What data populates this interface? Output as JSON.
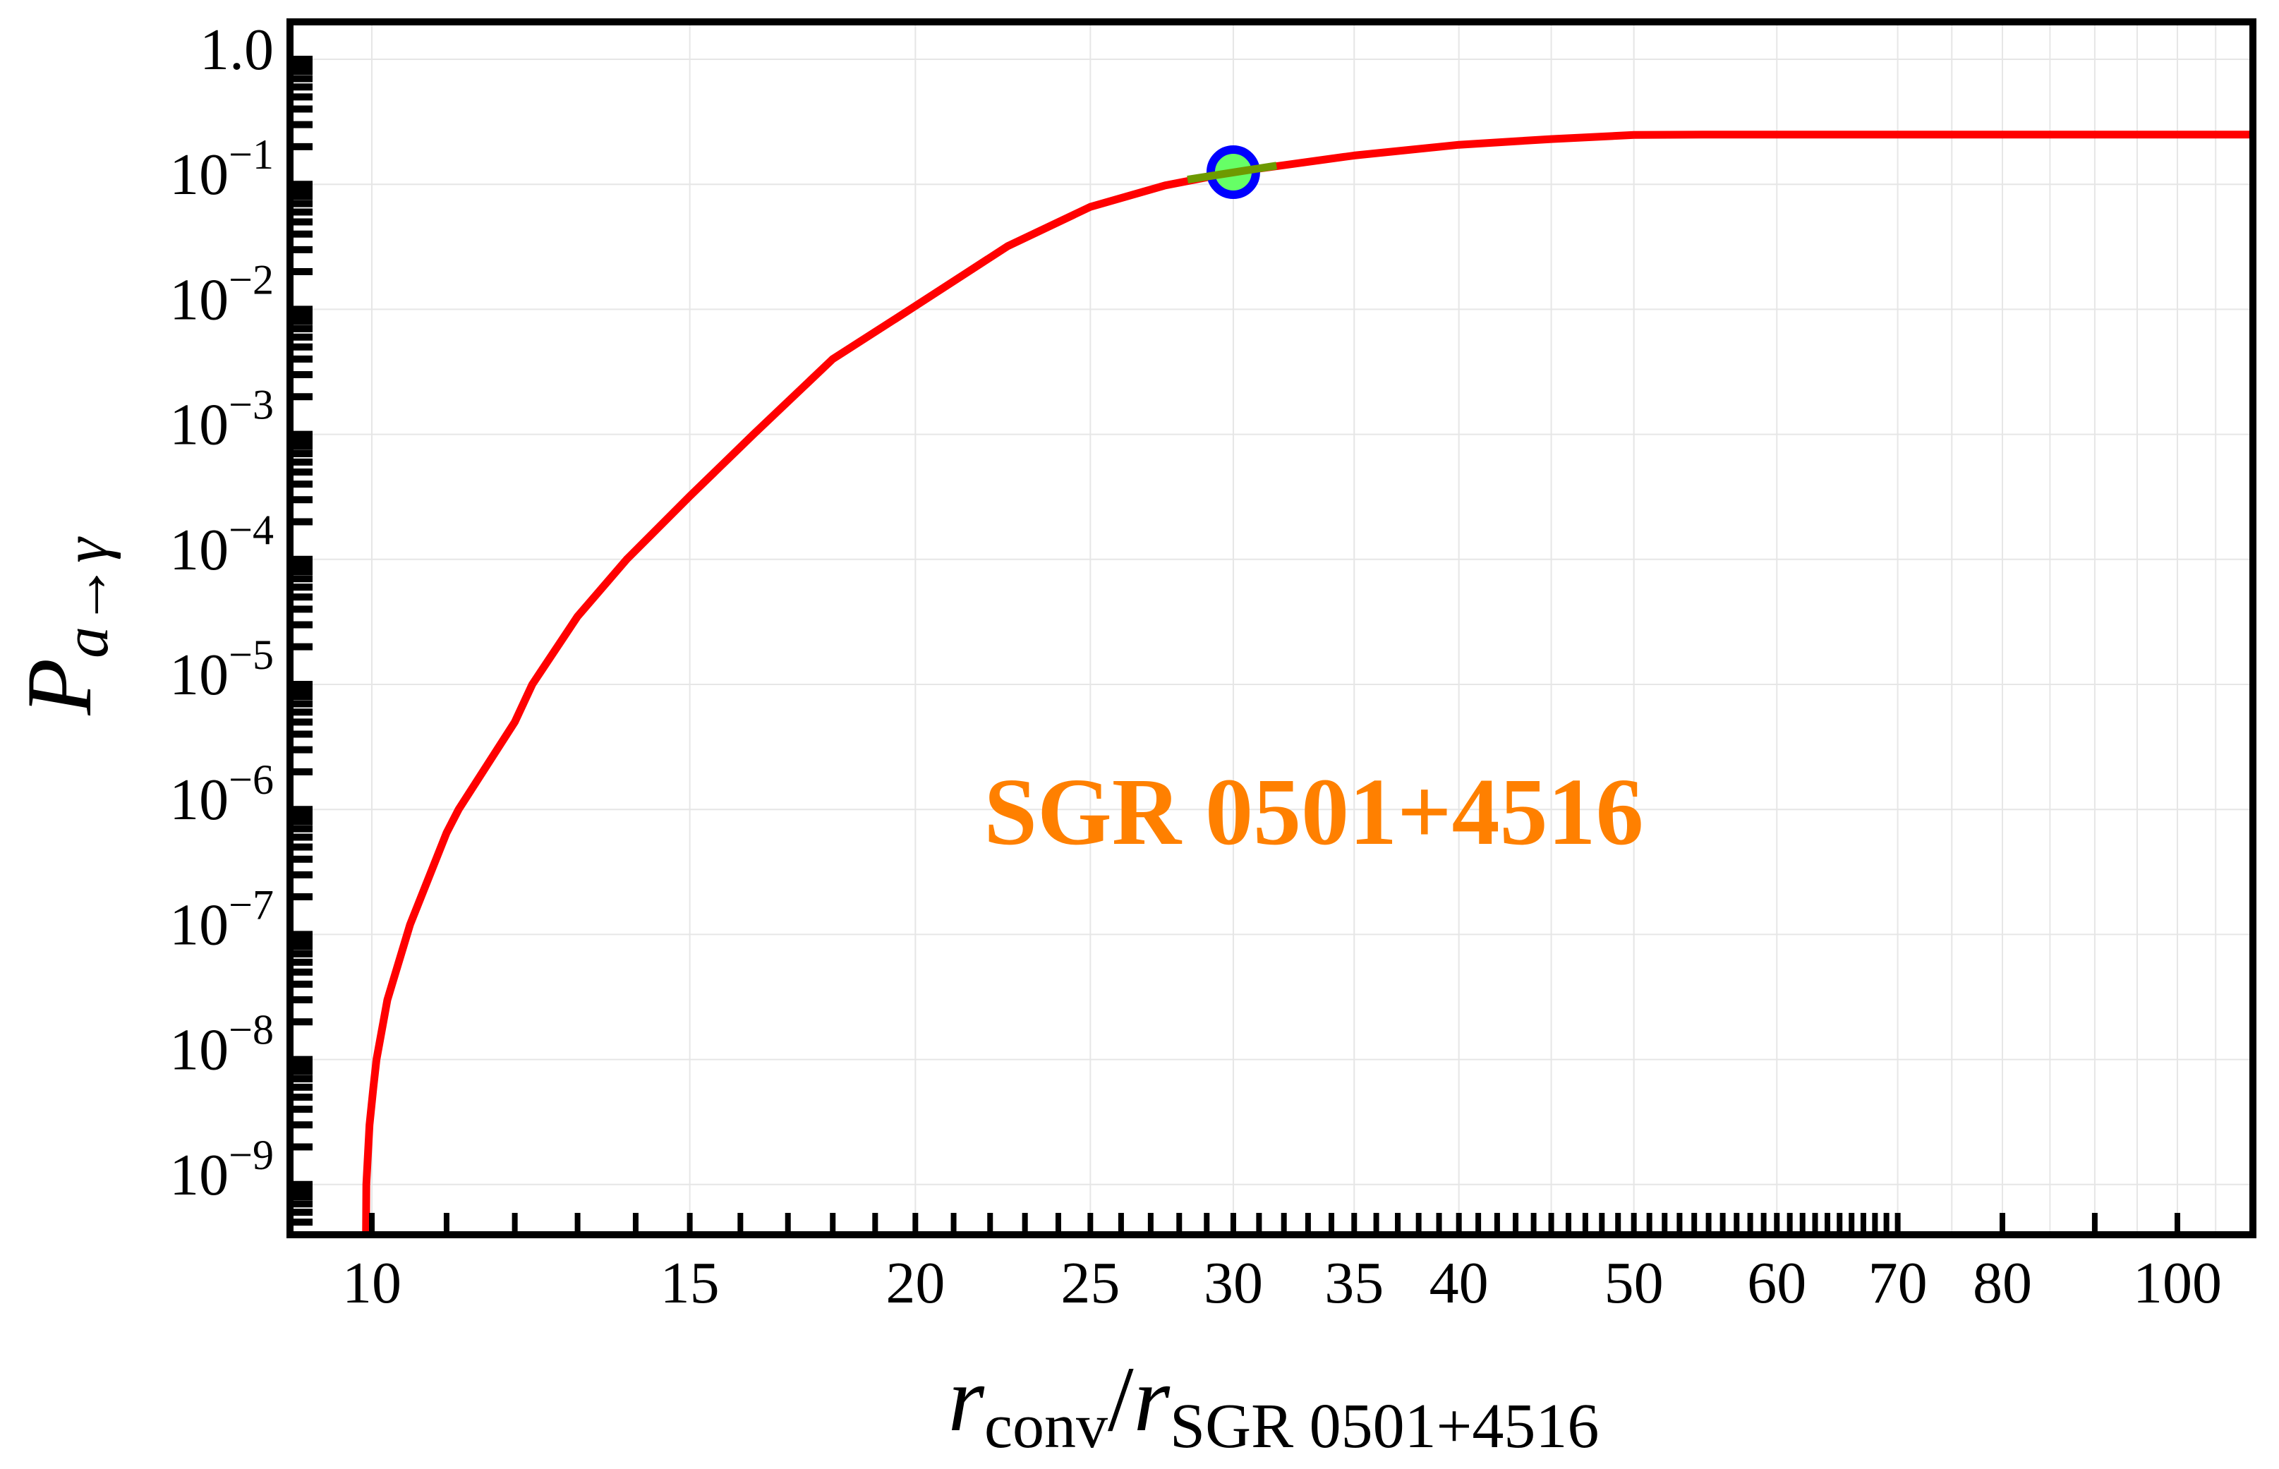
{
  "chart_data": {
    "type": "line",
    "title": "",
    "xlabel": {
      "main": "r",
      "main_sub": "conv",
      "slash": "/",
      "denom": "r",
      "denom_sub": "SGR 0501+4516"
    },
    "ylabel": {
      "main": "P",
      "sub": "a→γ"
    },
    "xscale": "log",
    "yscale": "log",
    "xlim": [
      9.04,
      110
    ],
    "ylim": [
      4e-10,
      2.0
    ],
    "grid": true,
    "legend": null,
    "x_tick_labels": [
      {
        "value": 10,
        "label": "10"
      },
      {
        "value": 15,
        "label": "15"
      },
      {
        "value": 20,
        "label": "20"
      },
      {
        "value": 25,
        "label": "25"
      },
      {
        "value": 30,
        "label": "30"
      },
      {
        "value": 35,
        "label": "35"
      },
      {
        "value": 40,
        "label": "40"
      },
      {
        "value": 50,
        "label": "50"
      },
      {
        "value": 60,
        "label": "60"
      },
      {
        "value": 70,
        "label": "70"
      },
      {
        "value": 80,
        "label": "80"
      },
      {
        "value": 100,
        "label": "100"
      }
    ],
    "y_tick_labels": [
      {
        "value": 1.0,
        "base": "1.0",
        "exp": ""
      },
      {
        "value": 0.1,
        "base": "10",
        "exp": "−1"
      },
      {
        "value": 0.01,
        "base": "10",
        "exp": "−2"
      },
      {
        "value": 0.001,
        "base": "10",
        "exp": "−3"
      },
      {
        "value": 0.0001,
        "base": "10",
        "exp": "−4"
      },
      {
        "value": 1e-05,
        "base": "10",
        "exp": "−5"
      },
      {
        "value": 1e-06,
        "base": "10",
        "exp": "−6"
      },
      {
        "value": 1e-07,
        "base": "10",
        "exp": "−7"
      },
      {
        "value": 1e-08,
        "base": "10",
        "exp": "−8"
      },
      {
        "value": 1e-09,
        "base": "10",
        "exp": "−9"
      }
    ],
    "x_grid_values": [
      10,
      15,
      20,
      25,
      30,
      35,
      40,
      45,
      50,
      60,
      70,
      75,
      80,
      85,
      90,
      95,
      100,
      105
    ],
    "series": [
      {
        "name": "P(a→γ)",
        "color": "#ff0000",
        "x": [
          9.92,
          9.93,
          9.97,
          10.02,
          10.06,
          10.2,
          10.5,
          11.0,
          11.17,
          12.0,
          12.27,
          13.0,
          13.84,
          15.0,
          16.27,
          18.0,
          19.87,
          22.5,
          25.0,
          27.5,
          30.0,
          35.0,
          40.0,
          45.0,
          50.0,
          55.0,
          110.0
        ],
        "y": [
          1e-10,
          1e-09,
          3e-09,
          6e-09,
          1e-08,
          3e-08,
          1.2e-07,
          6.5e-07,
          1e-06,
          5e-06,
          1e-05,
          3.5e-05,
          0.0001,
          0.00032,
          0.001,
          0.004,
          0.01,
          0.032,
          0.066,
          0.098,
          0.125,
          0.17,
          0.207,
          0.23,
          0.248,
          0.25,
          0.25
        ]
      }
    ],
    "marker": {
      "x": 30,
      "y": 0.125,
      "fill": "#66ff66",
      "edge": "#0000ff"
    },
    "annotations": [
      {
        "text": "SGR 0501+4516",
        "x": 22.8,
        "y": 1e-06,
        "color": "#ff8000"
      }
    ]
  }
}
